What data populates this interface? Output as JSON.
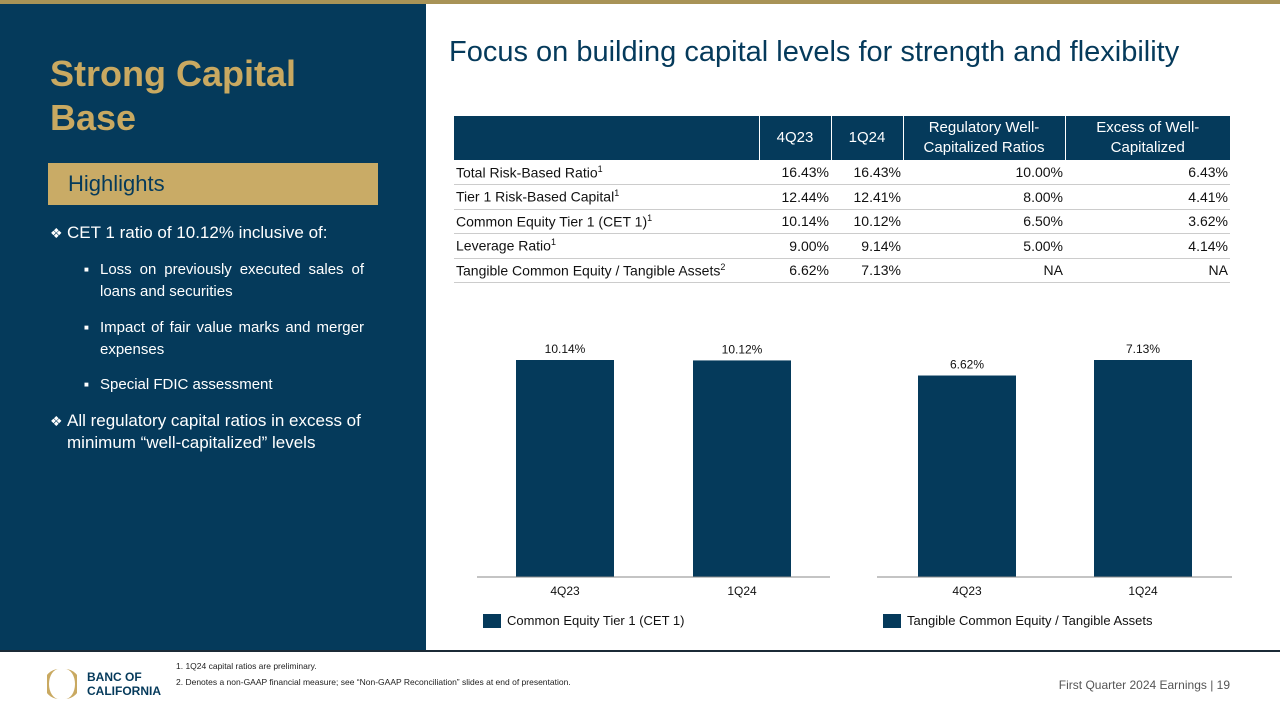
{
  "sidebar": {
    "title": "Strong Capital Base",
    "highlights_label": "Highlights",
    "bullets": [
      {
        "text": "CET 1 ratio of 10.12% inclusive of:",
        "sub": [
          "Loss on previously executed sales of loans and securities",
          "Impact of fair value marks and merger expenses",
          "Special FDIC assessment"
        ]
      },
      {
        "text": "All regulatory capital ratios in excess of minimum “well-capitalized” levels"
      }
    ]
  },
  "heading": "Focus on building capital levels for strength and flexibility",
  "table": {
    "headers": [
      "",
      "4Q23",
      "1Q24",
      "Regulatory Well-Capitalized Ratios",
      "Excess of Well-Capitalized"
    ],
    "rows": [
      {
        "label": "Total Risk-Based Ratio",
        "note": "1",
        "values": [
          "16.43%",
          "16.43%",
          "10.00%",
          "6.43%"
        ]
      },
      {
        "label": "Tier 1 Risk-Based Capital",
        "note": "1",
        "values": [
          "12.44%",
          "12.41%",
          "8.00%",
          "4.41%"
        ]
      },
      {
        "label": "Common Equity Tier 1 (CET 1)",
        "note": "1",
        "values": [
          "10.14%",
          "10.12%",
          "6.50%",
          "3.62%"
        ]
      },
      {
        "label": "Leverage Ratio",
        "note": "1",
        "values": [
          "9.00%",
          "9.14%",
          "5.00%",
          "4.14%"
        ]
      },
      {
        "label": "Tangible Common Equity / Tangible Assets",
        "note": "2",
        "values": [
          "6.62%",
          "7.13%",
          "NA",
          "NA"
        ]
      }
    ]
  },
  "chart_data": [
    {
      "type": "bar",
      "categories": [
        "4Q23",
        "1Q24"
      ],
      "values": [
        10.14,
        10.12
      ],
      "labels": [
        "10.14%",
        "10.12%"
      ],
      "legend": "Common Equity Tier 1 (CET 1)",
      "color": "#053a5b"
    },
    {
      "type": "bar",
      "categories": [
        "4Q23",
        "1Q24"
      ],
      "values": [
        6.62,
        7.13
      ],
      "labels": [
        "6.62%",
        "7.13%"
      ],
      "legend": "Tangible Common Equity / Tangible Assets",
      "color": "#053a5b"
    }
  ],
  "footer": {
    "logo_text": "BANC OF CALIFORNIA",
    "notes": [
      "1.  1Q24 capital ratios are preliminary.",
      "2.  Denotes a non-GAAP financial measure; see “Non-GAAP Reconciliation” slides at end of presentation."
    ],
    "page": "First Quarter 2024 Earnings | 19"
  }
}
